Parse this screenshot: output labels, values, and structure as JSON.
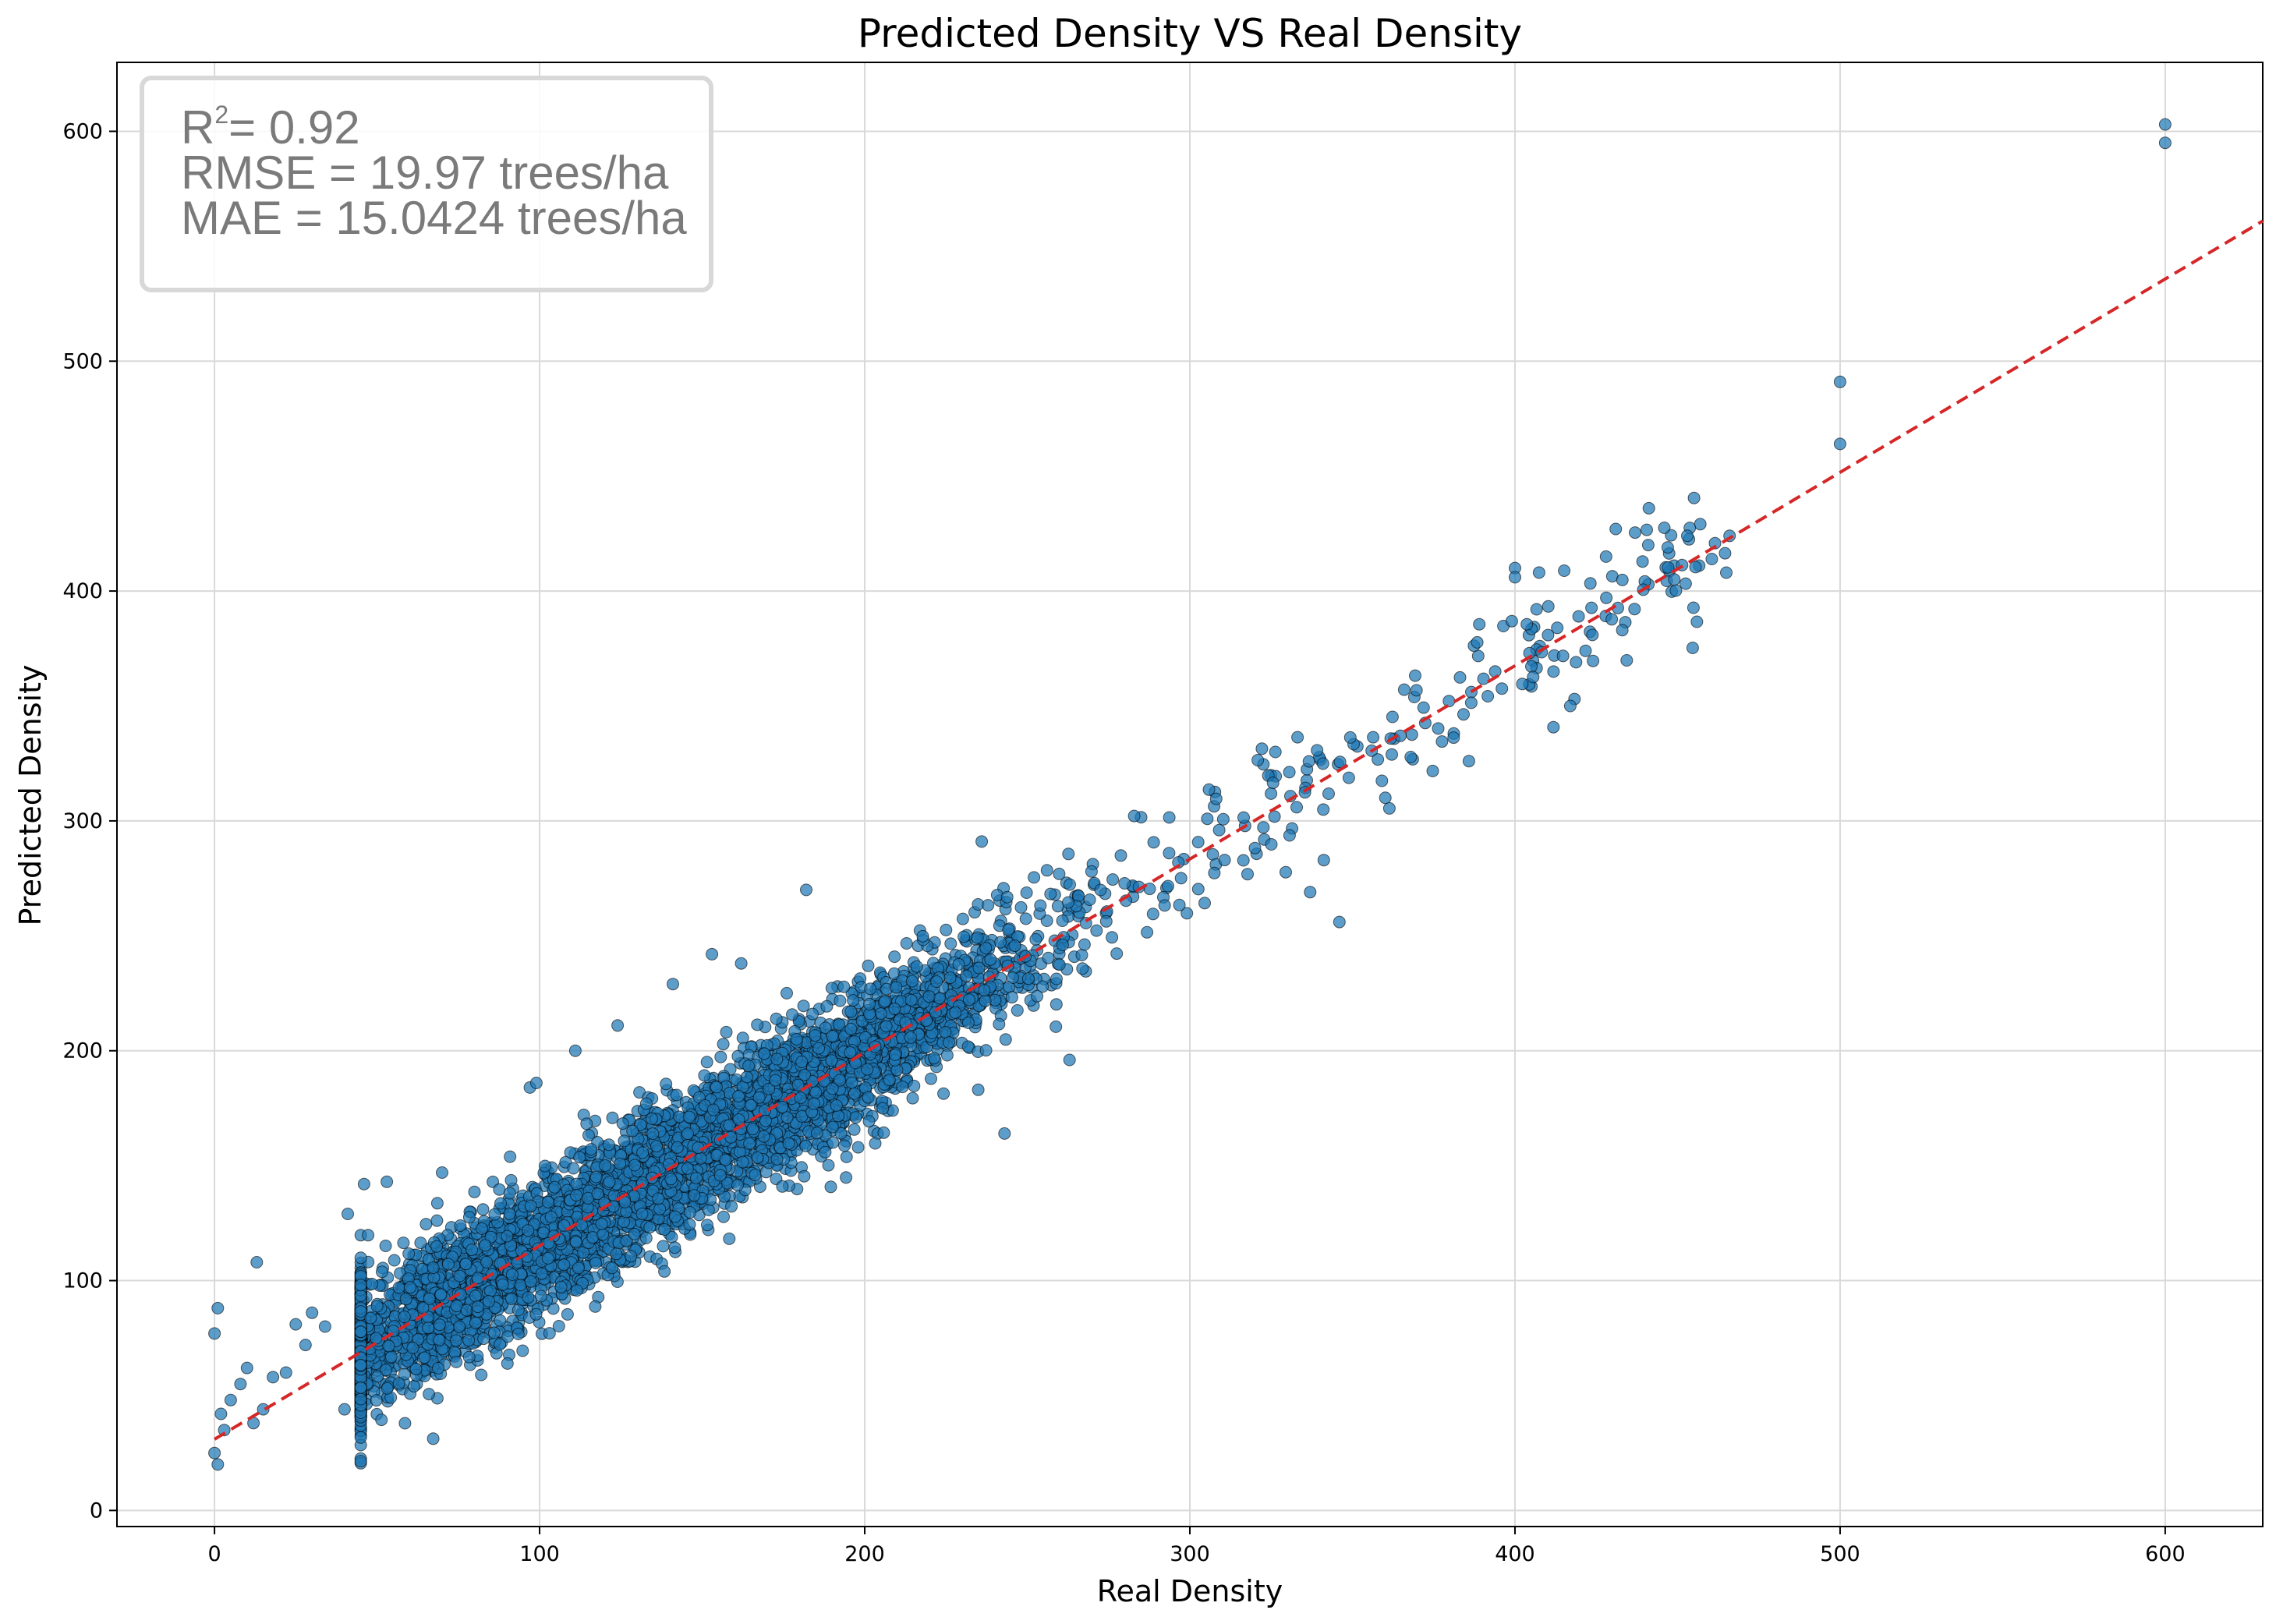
{
  "chart_data": {
    "type": "scatter",
    "title": "Predicted Density VS Real Density",
    "xlabel": "Real Density",
    "ylabel": "Predicted Density",
    "xlim": [
      -30,
      630
    ],
    "ylim": [
      -7,
      630
    ],
    "xticks": [
      0,
      100,
      200,
      300,
      400,
      500,
      600
    ],
    "yticks": [
      0,
      100,
      200,
      300,
      400,
      500,
      600
    ],
    "grid": true,
    "marker_color": "#1f77b4",
    "marker_edge_color": "#000000",
    "fit_line": {
      "color": "#d62728",
      "style": "dashed",
      "x": [
        0,
        630
      ],
      "y": [
        31,
        561
      ]
    },
    "stats_box": {
      "placement": "top-left",
      "r2_prefix": "R",
      "r2_superscript": "2",
      "r2_text": "= 0.92",
      "rmse_text": "RMSE = 19.97 trees/ha",
      "mae_text": "MAE = 15.0424 trees/ha"
    },
    "point_cloud": {
      "description_of_distribution": "dense band around fit line",
      "x_range": [
        0,
        466
      ],
      "approx_count": 5000,
      "residual_sd": 15,
      "seed": 7
    },
    "points": [
      {
        "x": 600,
        "y": 603
      },
      {
        "x": 600,
        "y": 595
      },
      {
        "x": 500,
        "y": 491
      },
      {
        "x": 500,
        "y": 464
      },
      {
        "x": 0,
        "y": 77
      },
      {
        "x": 1,
        "y": 88
      },
      {
        "x": 1,
        "y": 20
      },
      {
        "x": 0,
        "y": 25
      },
      {
        "x": 13,
        "y": 108
      },
      {
        "x": 2,
        "y": 42
      },
      {
        "x": 3,
        "y": 35
      },
      {
        "x": 5,
        "y": 48
      },
      {
        "x": 8,
        "y": 55
      },
      {
        "x": 10,
        "y": 62
      },
      {
        "x": 12,
        "y": 38
      },
      {
        "x": 15,
        "y": 44
      },
      {
        "x": 18,
        "y": 58
      },
      {
        "x": 22,
        "y": 60
      },
      {
        "x": 25,
        "y": 81
      },
      {
        "x": 28,
        "y": 72
      },
      {
        "x": 30,
        "y": 86
      },
      {
        "x": 34,
        "y": 80
      },
      {
        "x": 40,
        "y": 44
      },
      {
        "x": 41,
        "y": 129
      },
      {
        "x": 46,
        "y": 142
      },
      {
        "x": 53,
        "y": 143
      },
      {
        "x": 70,
        "y": 147
      },
      {
        "x": 97,
        "y": 184
      },
      {
        "x": 99,
        "y": 186
      },
      {
        "x": 111,
        "y": 200
      },
      {
        "x": 124,
        "y": 211
      },
      {
        "x": 141,
        "y": 229
      },
      {
        "x": 153,
        "y": 242
      },
      {
        "x": 162,
        "y": 238
      },
      {
        "x": 182,
        "y": 270
      },
      {
        "x": 236,
        "y": 291
      },
      {
        "x": 243,
        "y": 164
      },
      {
        "x": 263,
        "y": 196
      },
      {
        "x": 337,
        "y": 269
      },
      {
        "x": 346,
        "y": 256
      },
      {
        "x": 400,
        "y": 410
      },
      {
        "x": 400,
        "y": 406
      },
      {
        "x": 417,
        "y": 350
      },
      {
        "x": 431,
        "y": 427
      },
      {
        "x": 441,
        "y": 420
      },
      {
        "x": 447,
        "y": 419
      },
      {
        "x": 453,
        "y": 424
      },
      {
        "x": 466,
        "y": 424
      },
      {
        "x": 449,
        "y": 405
      },
      {
        "x": 433,
        "y": 383
      }
    ]
  }
}
